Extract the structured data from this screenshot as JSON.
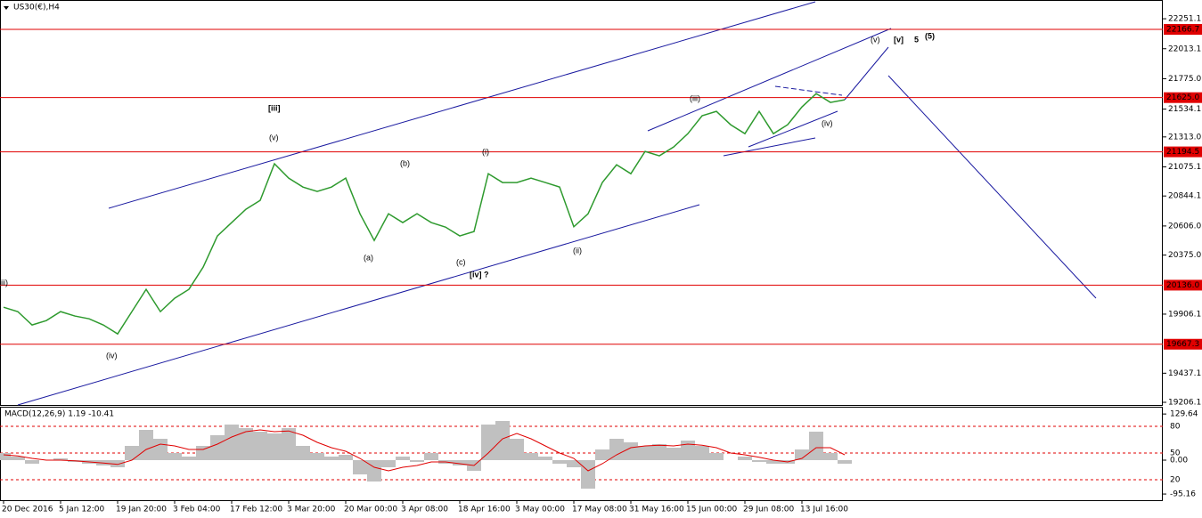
{
  "chart_data": [
    {
      "type": "line",
      "title": "US30(€),H4",
      "categories": [
        "20 Dec 2016",
        null,
        null,
        null,
        "5 Jan 12:00",
        null,
        null,
        null,
        "19 Jan 20:00",
        null,
        null,
        null,
        "3 Feb 04:00",
        null,
        null,
        null,
        "17 Feb 12:00",
        null,
        null,
        null,
        "3 Mar 20:00",
        null,
        null,
        null,
        "20 Mar 00:00",
        null,
        null,
        null,
        "3 Apr 08:00",
        null,
        null,
        null,
        "18 Apr 16:00",
        null,
        null,
        null,
        "3 May 00:00",
        null,
        null,
        null,
        "17 May 08:00",
        null,
        null,
        null,
        "31 May 16:00",
        null,
        null,
        null,
        "15 Jun 00:00",
        null,
        null,
        null,
        "29 Jun 08:00",
        null,
        null,
        null,
        "13 Jul 16:00",
        null,
        null,
        null
      ],
      "series": [
        {
          "color": "#2e9a2e",
          "values": [
            19961,
            19926,
            19820,
            19855,
            19926,
            19891,
            19869,
            19820,
            19749,
            19926,
            20103,
            19926,
            20032,
            20103,
            20279,
            20527,
            20633,
            20739,
            20809,
            21100,
            20986,
            20915,
            20880,
            20915,
            20986,
            20703,
            20491,
            20703,
            20633,
            20703,
            20633,
            20597,
            20527,
            20562,
            21021,
            20951,
            20951,
            20986,
            20951,
            20915,
            20600,
            20703,
            20951,
            21092,
            21021,
            21198,
            21163,
            21233,
            21339,
            21481,
            21516,
            21410,
            21339,
            21516,
            21339,
            21410,
            21551,
            21657,
            21587,
            21608
          ]
        }
      ],
      "ylim": [
        19185,
        22400
      ],
      "yticks": [
        22251.1,
        22013.1,
        {
          "value": 21775,
          "label": "21775.0"
        },
        21534.1,
        {
          "value": 21313,
          "label": "21313.0"
        },
        21075.1,
        20844.1,
        {
          "value": 20606,
          "label": "20606.0"
        },
        {
          "value": 20375,
          "label": "20375.0"
        },
        19906.1,
        19437.1,
        19206.1
      ],
      "hlines": [
        22166.7,
        {
          "value": 21625,
          "label": "21625.0"
        },
        21194.5,
        {
          "value": 20136,
          "label": "20136.0"
        },
        19667.3
      ],
      "hline_color": "#e00000",
      "annotations": [
        {
          "text": "iii)",
          "color": "#808080"
        },
        {
          "text": "(iv)",
          "color": "#808080"
        },
        {
          "text": "[iii]",
          "color": "#1a8a1a"
        },
        {
          "text": "(v)",
          "color": "#808080"
        },
        {
          "text": "(a)",
          "color": "#808080"
        },
        {
          "text": "(b)",
          "color": "#808080"
        },
        {
          "text": "(c)",
          "color": "#808080"
        },
        {
          "text": "[iv] ?",
          "color": "#1a8a1a"
        },
        {
          "text": "(i)",
          "color": "#808080"
        },
        {
          "text": "(ii)",
          "color": "#808080"
        },
        {
          "text": "(iii)",
          "color": "#808080"
        },
        {
          "text": "(iv)",
          "color": "#808080"
        },
        {
          "text": "(v)",
          "color": "#808080"
        },
        {
          "text": "[v]",
          "color": "#1a8a1a"
        },
        {
          "text": "5",
          "color": "#1a1acc"
        },
        {
          "text": "(5)",
          "color": "#e00000"
        }
      ]
    },
    {
      "type": "bar",
      "title": "MACD(12,26,9) 1.19 -10.41",
      "values": [
        20,
        10,
        -10,
        0,
        5,
        -5,
        -10,
        -15,
        -20,
        40,
        85,
        60,
        20,
        10,
        40,
        70,
        100,
        90,
        80,
        75,
        90,
        40,
        20,
        10,
        15,
        -40,
        -60,
        -20,
        10,
        -5,
        20,
        -10,
        -15,
        -30,
        100,
        110,
        60,
        20,
        10,
        -10,
        -20,
        -80,
        30,
        60,
        50,
        40,
        45,
        35,
        55,
        40,
        20,
        0,
        10,
        -5,
        -10,
        -10,
        30,
        80,
        20,
        -10
      ],
      "color": "#c0c0c0",
      "signal": {
        "color": "#e00000",
        "values": [
          15,
          12,
          5,
          0,
          0,
          -2,
          -5,
          -8,
          -12,
          0,
          30,
          45,
          40,
          30,
          30,
          45,
          65,
          80,
          85,
          80,
          82,
          70,
          50,
          35,
          25,
          5,
          -20,
          -30,
          -20,
          -15,
          -5,
          -5,
          -10,
          -15,
          20,
          60,
          75,
          60,
          40,
          20,
          5,
          -30,
          -10,
          15,
          35,
          40,
          42,
          40,
          45,
          42,
          35,
          20,
          15,
          8,
          0,
          -5,
          5,
          35,
          35,
          15
        ]
      },
      "ylim": [
        -112.5,
        147.5
      ],
      "yticks": [
        129.64,
        {
          "value": 0,
          "label": "0.00"
        },
        -95.16
      ],
      "levels": [
        80,
        50,
        20
      ],
      "levels_lim": [
        -3,
        101
      ],
      "level_color": "#e00000"
    }
  ]
}
